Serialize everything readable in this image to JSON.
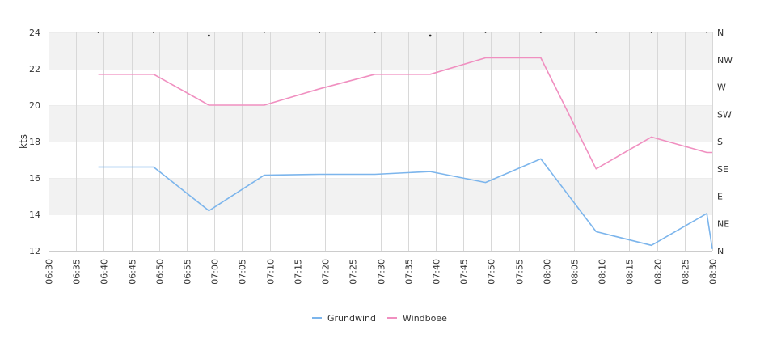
{
  "chart_data": {
    "type": "line",
    "title": "",
    "ylabel": "kts",
    "ylim": [
      12,
      24
    ],
    "yticks": [
      "12",
      "14",
      "16",
      "18",
      "20",
      "22",
      "24"
    ],
    "xlabels": [
      "06:30",
      "06:35",
      "06:40",
      "06:45",
      "06:50",
      "06:55",
      "07:00",
      "07:05",
      "07:10",
      "07:15",
      "07:20",
      "07:25",
      "07:30",
      "07:35",
      "07:40",
      "07:45",
      "07:50",
      "07:55",
      "08:00",
      "08:05",
      "08:10",
      "08:15",
      "08:20",
      "08:25",
      "08:30"
    ],
    "right_axis_labels": [
      "N",
      "NW",
      "W",
      "SW",
      "S",
      "SE",
      "E",
      "NE",
      "N"
    ],
    "grid": true,
    "legend_position": "bottom-center",
    "series": [
      {
        "name": "Grundwind",
        "color": "#7cb5ec",
        "points": [
          [
            "06:39",
            16.6
          ],
          [
            "06:49",
            16.6
          ],
          [
            "06:59",
            14.2
          ],
          [
            "07:09",
            16.15
          ],
          [
            "07:19",
            16.2
          ],
          [
            "07:29",
            16.2
          ],
          [
            "07:39",
            16.35
          ],
          [
            "07:49",
            15.75
          ],
          [
            "07:59",
            17.05
          ],
          [
            "08:09",
            13.05
          ],
          [
            "08:19",
            12.3
          ],
          [
            "08:29",
            14.05
          ],
          [
            "08:30",
            12.1
          ]
        ]
      },
      {
        "name": "Windboee",
        "color": "#f08fc0",
        "points": [
          [
            "06:39",
            21.7
          ],
          [
            "06:49",
            21.7
          ],
          [
            "06:59",
            20.0
          ],
          [
            "07:09",
            20.0
          ],
          [
            "07:19",
            20.9
          ],
          [
            "07:29",
            21.7
          ],
          [
            "07:39",
            21.7
          ],
          [
            "07:49",
            22.6
          ],
          [
            "07:59",
            22.6
          ],
          [
            "08:09",
            16.5
          ],
          [
            "08:19",
            18.25
          ],
          [
            "08:29",
            17.4
          ],
          [
            "08:30",
            17.4
          ]
        ]
      }
    ]
  },
  "legend": {
    "grundwind": "Grundwind",
    "windboee": "Windboee"
  }
}
